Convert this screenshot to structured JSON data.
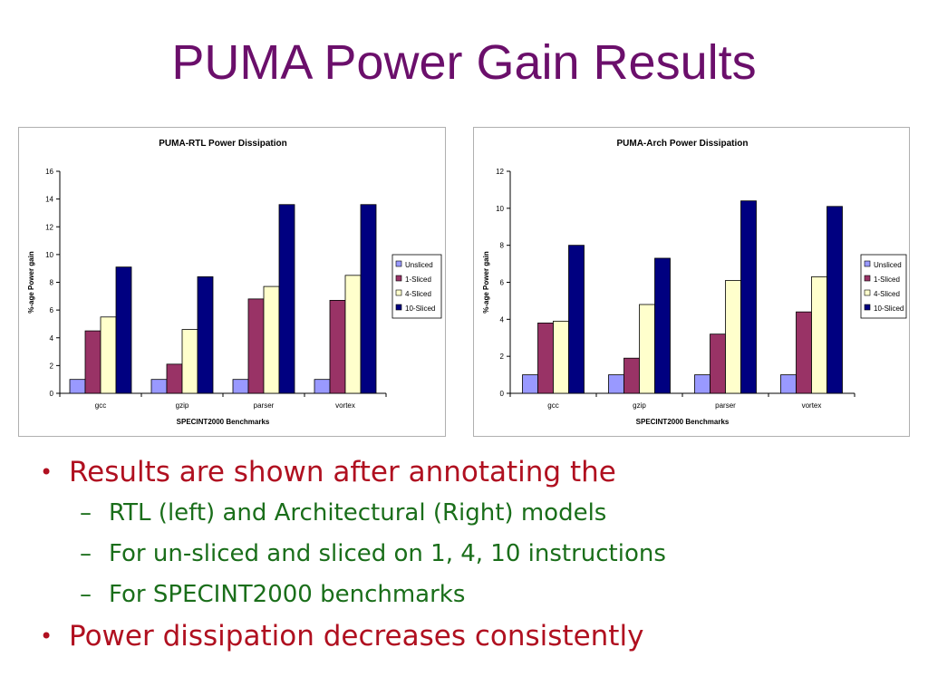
{
  "slide": {
    "title": "PUMA Power Gain Results"
  },
  "bullets": [
    {
      "level": 1,
      "text": "Results are shown after annotating the"
    },
    {
      "level": 2,
      "text": "RTL (left) and Architectural (Right) models"
    },
    {
      "level": 2,
      "text": "For un-sliced and sliced on 1, 4, 10 instructions"
    },
    {
      "level": 2,
      "text": "For SPECINT2000 benchmarks"
    },
    {
      "level": 1,
      "text": "Power dissipation decreases consistently"
    }
  ],
  "bullet_markers": {
    "level1": "•",
    "level2": "–"
  },
  "colors": {
    "title": "#6b0f6b",
    "bullet_level1": "#b01020",
    "bullet_level2": "#1a6e1a",
    "unsliced": "#9999ff",
    "sliced1": "#993366",
    "sliced4": "#ffffcc",
    "sliced10": "#000080"
  },
  "chart_data": [
    {
      "type": "bar",
      "title": "PUMA-RTL Power Dissipation",
      "xlabel": "SPECINT2000 Benchmarks",
      "ylabel": "%-age Power gain",
      "categories": [
        "gcc",
        "gzip",
        "parser",
        "vortex"
      ],
      "ylim": [
        0,
        16
      ],
      "yticks": [
        0,
        2,
        4,
        6,
        8,
        10,
        12,
        14,
        16
      ],
      "grid": false,
      "legend_position": "right",
      "series": [
        {
          "name": "Unsliced",
          "values": [
            1,
            1,
            1,
            1
          ],
          "color": "#9999ff"
        },
        {
          "name": "1-Sliced",
          "values": [
            4.5,
            2.1,
            6.8,
            6.7
          ],
          "color": "#993366"
        },
        {
          "name": "4-Sliced",
          "values": [
            5.5,
            4.6,
            7.7,
            8.5
          ],
          "color": "#ffffcc"
        },
        {
          "name": "10-Sliced",
          "values": [
            9.1,
            8.4,
            13.6,
            13.6
          ],
          "color": "#000080"
        }
      ]
    },
    {
      "type": "bar",
      "title": "PUMA-Arch Power Dissipation",
      "xlabel": "SPECINT2000 Benchmarks",
      "ylabel": "%-age Power gain",
      "categories": [
        "gcc",
        "gzip",
        "parser",
        "vortex"
      ],
      "ylim": [
        0,
        12
      ],
      "yticks": [
        0,
        2,
        4,
        6,
        8,
        10,
        12
      ],
      "grid": false,
      "legend_position": "right",
      "series": [
        {
          "name": "Unsliced",
          "values": [
            1,
            1,
            1,
            1
          ],
          "color": "#9999ff"
        },
        {
          "name": "1-Sliced",
          "values": [
            3.8,
            1.9,
            3.2,
            4.4
          ],
          "color": "#993366"
        },
        {
          "name": "4-Sliced",
          "values": [
            3.9,
            4.8,
            6.1,
            6.3
          ],
          "color": "#ffffcc"
        },
        {
          "name": "10-Sliced",
          "values": [
            8.0,
            7.3,
            10.4,
            10.1
          ],
          "color": "#000080"
        }
      ]
    }
  ]
}
